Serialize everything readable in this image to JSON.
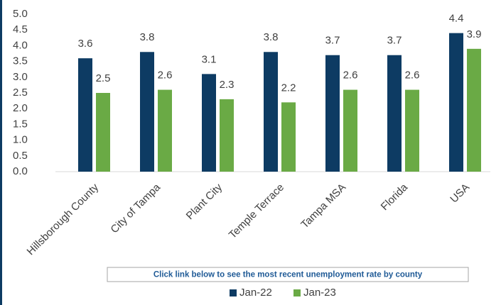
{
  "chart_data": {
    "type": "bar",
    "categories": [
      "Hillsborough County",
      "City of Tampa",
      "Plant City",
      "Temple Terrace",
      "Tampa MSA",
      "Florida",
      "USA"
    ],
    "series": [
      {
        "name": "Jan-22",
        "color": "#0d3b63",
        "values": [
          3.6,
          3.8,
          3.1,
          3.8,
          3.7,
          3.7,
          4.4
        ]
      },
      {
        "name": "Jan-23",
        "color": "#6aaa45",
        "values": [
          2.5,
          2.6,
          2.3,
          2.2,
          2.6,
          2.6,
          3.9
        ]
      }
    ],
    "ylim": [
      0,
      5
    ],
    "yticks": [
      {
        "value": 0,
        "label": "0.0"
      },
      0.5,
      {
        "value": 1,
        "label": "1.0"
      },
      1.5,
      {
        "value": 2,
        "label": "2.0"
      },
      2.5,
      {
        "value": 3,
        "label": "3.0"
      },
      3.5,
      {
        "value": 4,
        "label": "4.0"
      },
      4.5,
      {
        "value": 5,
        "label": "5.0"
      }
    ],
    "grid": false,
    "legend": "bottom"
  },
  "link_box": {
    "text": "Click link below to see the most recent unemployment rate by county"
  }
}
